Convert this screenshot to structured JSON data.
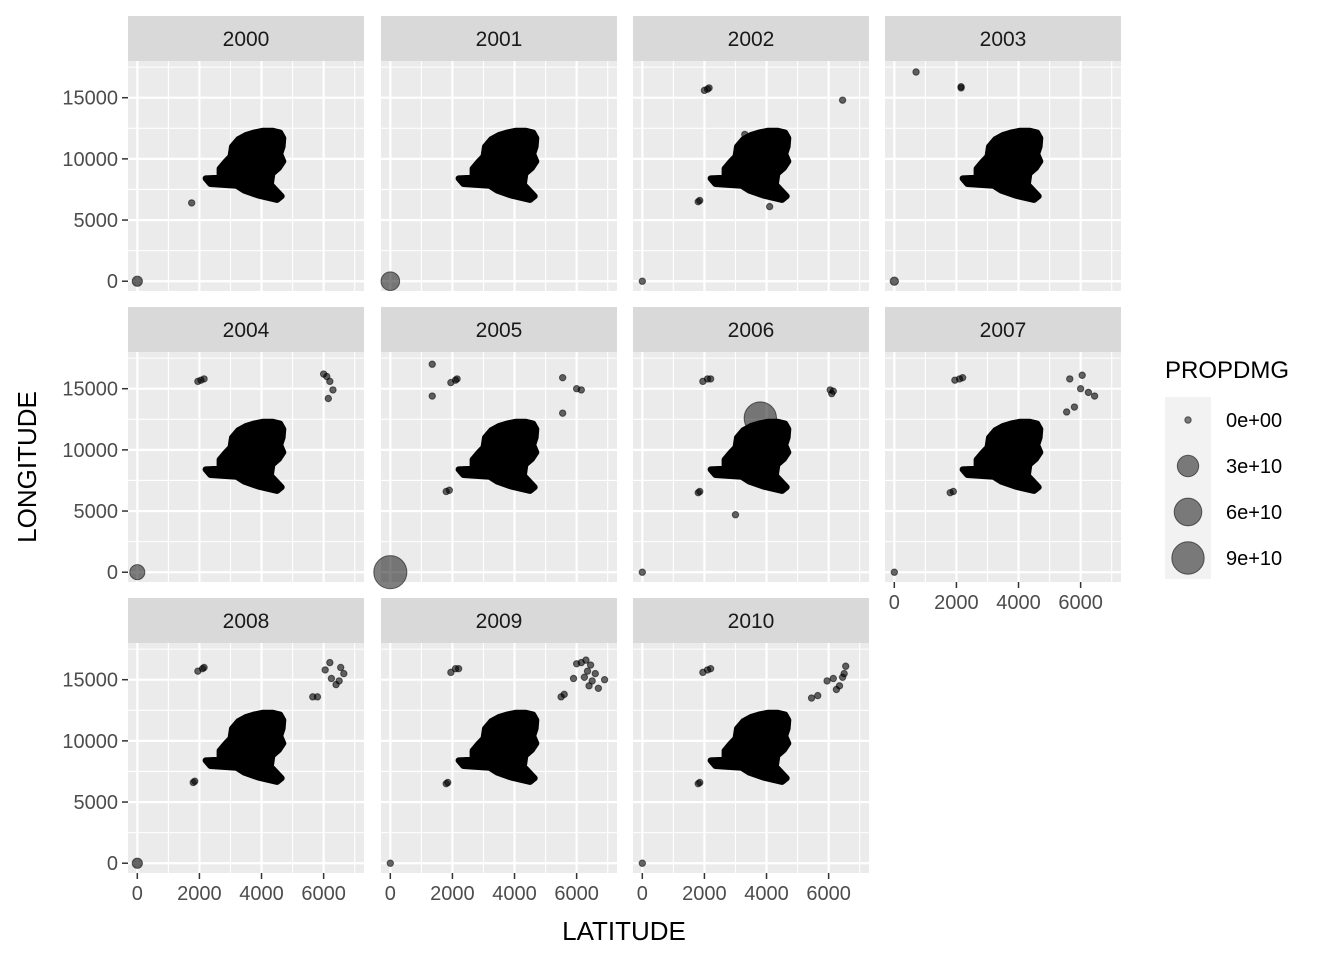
{
  "chart_data": {
    "type": "scatter",
    "facet_variable": "year",
    "xlabel": "LATITUDE",
    "ylabel": "LONGITUDE",
    "x_ticks": [
      0,
      2000,
      4000,
      6000
    ],
    "y_ticks": [
      0,
      5000,
      10000,
      15000
    ],
    "xlim": [
      -300,
      7300
    ],
    "ylim": [
      -800,
      18000
    ],
    "grid": true,
    "point_color": "#000000",
    "panel_background": "#ebebeb",
    "strip_background": "#d9d9d9",
    "legend": {
      "title": "PROPDMG",
      "placement": "right",
      "entries": [
        {
          "label": "0e+00",
          "value": 0
        },
        {
          "label": "3e+10",
          "value": 30000000000
        },
        {
          "label": "6e+10",
          "value": 60000000000
        },
        {
          "label": "9e+10",
          "value": 90000000000
        }
      ]
    },
    "main_cluster": {
      "outline": [
        [
          3000,
          10200
        ],
        [
          3050,
          11000
        ],
        [
          3250,
          11600
        ],
        [
          3500,
          11950
        ],
        [
          3750,
          12150
        ],
        [
          4050,
          12300
        ],
        [
          4350,
          12300
        ],
        [
          4600,
          12150
        ],
        [
          4700,
          11700
        ],
        [
          4680,
          11000
        ],
        [
          4600,
          10400
        ],
        [
          4700,
          9800
        ],
        [
          4560,
          9250
        ],
        [
          4350,
          8800
        ],
        [
          4300,
          7900
        ],
        [
          4650,
          6950
        ],
        [
          4500,
          6650
        ],
        [
          3900,
          7000
        ],
        [
          3450,
          7400
        ],
        [
          3200,
          7800
        ],
        [
          2350,
          7950
        ],
        [
          2200,
          8400
        ],
        [
          2650,
          8450
        ],
        [
          2650,
          9200
        ],
        [
          2850,
          9800
        ]
      ]
    },
    "panels": [
      {
        "year": "2000",
        "points": [
          [
            1750,
            6400,
            0
          ],
          [
            0,
            0,
            2000000000
          ]
        ]
      },
      {
        "year": "2001",
        "points": [
          [
            0,
            0,
            20000000000
          ]
        ]
      },
      {
        "year": "2002",
        "points": [
          [
            1800,
            6500,
            0
          ],
          [
            1850,
            6600,
            0
          ],
          [
            2000,
            15600,
            0
          ],
          [
            2150,
            15800,
            0
          ],
          [
            2100,
            15700,
            0
          ],
          [
            6450,
            14800,
            0
          ],
          [
            4100,
            6100,
            0
          ],
          [
            3300,
            12000,
            0
          ],
          [
            0,
            0,
            0
          ]
        ]
      },
      {
        "year": "2003",
        "points": [
          [
            700,
            17100,
            0
          ],
          [
            2150,
            15800,
            0
          ],
          [
            2150,
            15900,
            0
          ],
          [
            0,
            0,
            500000000
          ]
        ]
      },
      {
        "year": "2004",
        "points": [
          [
            1950,
            15600,
            0
          ],
          [
            2050,
            15700,
            0
          ],
          [
            2150,
            15800,
            0
          ],
          [
            6000,
            16200,
            0
          ],
          [
            6100,
            16000,
            0
          ],
          [
            6200,
            15600,
            0
          ],
          [
            6300,
            14900,
            0
          ],
          [
            6150,
            14200,
            0
          ],
          [
            0,
            0,
            10000000000
          ]
        ]
      },
      {
        "year": "2005",
        "points": [
          [
            1350,
            17000,
            0
          ],
          [
            1350,
            14400,
            0
          ],
          [
            1950,
            15500,
            0
          ],
          [
            2150,
            15800,
            0
          ],
          [
            2100,
            15700,
            0
          ],
          [
            5550,
            15900,
            0
          ],
          [
            5550,
            13000,
            0
          ],
          [
            6000,
            15000,
            0
          ],
          [
            6150,
            14900,
            0
          ],
          [
            1800,
            6600,
            0
          ],
          [
            1900,
            6700,
            0
          ],
          [
            0,
            0,
            95000000000
          ]
        ]
      },
      {
        "year": "2006",
        "points": [
          [
            1950,
            15600,
            0
          ],
          [
            2100,
            15800,
            0
          ],
          [
            2200,
            15800,
            0
          ],
          [
            6050,
            14900,
            0
          ],
          [
            6100,
            14600,
            0
          ],
          [
            6150,
            14800,
            0
          ],
          [
            1800,
            6500,
            0
          ],
          [
            1850,
            6600,
            0
          ],
          [
            3000,
            4700,
            0
          ],
          [
            3800,
            12600,
            90000000000
          ],
          [
            0,
            0,
            0
          ]
        ]
      },
      {
        "year": "2007",
        "points": [
          [
            1950,
            15700,
            0
          ],
          [
            2100,
            15800,
            0
          ],
          [
            2200,
            15900,
            0
          ],
          [
            5650,
            15800,
            0
          ],
          [
            6050,
            16100,
            0
          ],
          [
            6000,
            15000,
            0
          ],
          [
            6250,
            14700,
            0
          ],
          [
            6450,
            14400,
            0
          ],
          [
            5800,
            13500,
            0
          ],
          [
            5550,
            13100,
            0
          ],
          [
            1800,
            6500,
            0
          ],
          [
            1900,
            6600,
            0
          ],
          [
            0,
            0,
            0
          ]
        ]
      },
      {
        "year": "2008",
        "points": [
          [
            1950,
            15700,
            0
          ],
          [
            2100,
            15900,
            0
          ],
          [
            2150,
            16000,
            0
          ],
          [
            5650,
            13600,
            0
          ],
          [
            5800,
            13600,
            0
          ],
          [
            6050,
            15800,
            0
          ],
          [
            6200,
            16400,
            0
          ],
          [
            6250,
            15100,
            0
          ],
          [
            6400,
            14600,
            0
          ],
          [
            6500,
            14900,
            0
          ],
          [
            6550,
            16000,
            0
          ],
          [
            6650,
            15500,
            0
          ],
          [
            1800,
            6600,
            0
          ],
          [
            1850,
            6700,
            0
          ],
          [
            0,
            0,
            2000000000
          ]
        ]
      },
      {
        "year": "2009",
        "points": [
          [
            1950,
            15600,
            0
          ],
          [
            2100,
            15900,
            0
          ],
          [
            2200,
            15900,
            0
          ],
          [
            5500,
            13600,
            0
          ],
          [
            5600,
            13800,
            0
          ],
          [
            5900,
            15100,
            0
          ],
          [
            6000,
            16300,
            0
          ],
          [
            6150,
            16400,
            0
          ],
          [
            6300,
            16600,
            0
          ],
          [
            6350,
            15700,
            0
          ],
          [
            6400,
            14500,
            0
          ],
          [
            6500,
            14900,
            0
          ],
          [
            6600,
            15500,
            0
          ],
          [
            6700,
            14300,
            0
          ],
          [
            6900,
            15000,
            0
          ],
          [
            6250,
            15200,
            0
          ],
          [
            6450,
            16200,
            0
          ],
          [
            1800,
            6500,
            0
          ],
          [
            1850,
            6600,
            0
          ],
          [
            0,
            0,
            0
          ]
        ]
      },
      {
        "year": "2010",
        "points": [
          [
            1950,
            15600,
            0
          ],
          [
            2100,
            15800,
            0
          ],
          [
            2200,
            15900,
            0
          ],
          [
            5450,
            13500,
            0
          ],
          [
            5650,
            13700,
            0
          ],
          [
            5950,
            14900,
            0
          ],
          [
            6150,
            15100,
            0
          ],
          [
            6250,
            14200,
            0
          ],
          [
            6350,
            14500,
            0
          ],
          [
            6450,
            15200,
            0
          ],
          [
            6500,
            15500,
            0
          ],
          [
            6550,
            16100,
            0
          ],
          [
            1800,
            6500,
            0
          ],
          [
            1850,
            6600,
            0
          ],
          [
            0,
            0,
            0
          ]
        ]
      }
    ]
  }
}
